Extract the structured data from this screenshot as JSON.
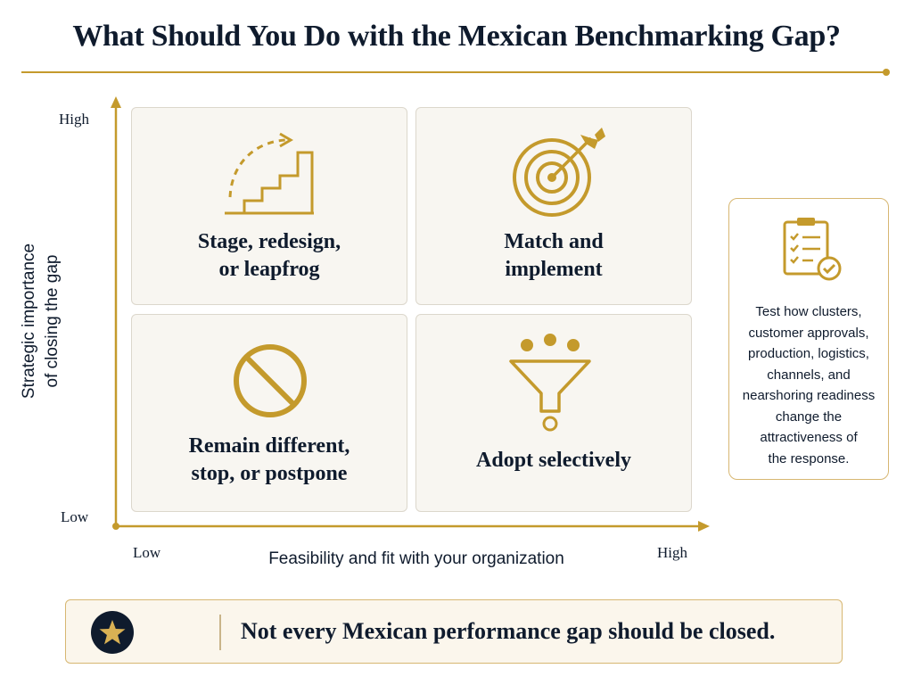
{
  "title": "What Should You Do with the Mexican Benchmarking Gap?",
  "axes": {
    "y_title_line1": "Strategic importance",
    "y_title_line2": "of closing the gap",
    "y_high": "High",
    "y_low": "Low",
    "x_title": "Feasibility and fit with your organization",
    "x_low": "Low",
    "x_high": "High"
  },
  "quadrants": {
    "top_left": {
      "line1": "Stage, redesign,",
      "line2": "or leapfrog",
      "icon": "staircase-arrow-icon"
    },
    "top_right": {
      "line1": "Match and",
      "line2": "implement",
      "icon": "target-arrow-icon"
    },
    "bottom_left": {
      "line1": "Remain different,",
      "line2": "stop, or postpone",
      "icon": "prohibited-icon"
    },
    "bottom_right": {
      "line1": "Adopt selectively",
      "icon": "funnel-icon"
    }
  },
  "side_note": {
    "icon": "clipboard-check-icon",
    "lines": [
      "Test how clusters,",
      "customer approvals,",
      "production, logistics,",
      "channels, and",
      "nearshoring readiness",
      "change the",
      "attractiveness of",
      "the response."
    ]
  },
  "banner": {
    "icon": "star-icon",
    "text": "Not every Mexican performance gap should be closed."
  },
  "colors": {
    "gold": "#c49a2c",
    "navy": "#0f1b2d",
    "panel": "#f8f6f1"
  }
}
